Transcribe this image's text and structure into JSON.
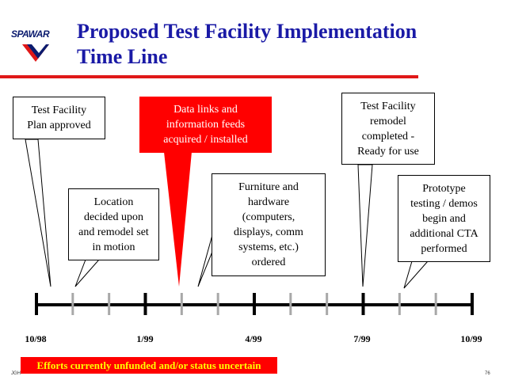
{
  "slide": {
    "logo_text": "SPAWAR",
    "title_line1": "Proposed Test Facility Implementation",
    "title_line2": "Time Line",
    "footer_note": "Efforts currently unfunded and/or status uncertain",
    "author_initials": "JGH",
    "page_number": "76"
  },
  "callouts": {
    "plan_approved": [
      "Test Facility",
      "Plan approved"
    ],
    "location_decided": [
      "Location",
      "decided upon",
      "and remodel set",
      "in motion"
    ],
    "data_links": [
      "Data links and",
      "information feeds",
      "acquired / installed"
    ],
    "furniture": [
      "Furniture and",
      "hardware",
      "(computers,",
      "displays, comm",
      "systems, etc.)",
      "ordered"
    ],
    "remodel_completed": [
      "Test Facility",
      "remodel",
      "completed -",
      "Ready for use"
    ],
    "prototype_testing": [
      "Prototype",
      "testing / demos",
      "begin and",
      "additional CTA",
      "performed"
    ]
  },
  "timeline": {
    "tick_labels": [
      "10/98",
      "1/99",
      "4/99",
      "7/99",
      "10/99"
    ]
  },
  "colors": {
    "title": "#1a1aa6",
    "accent_red": "#ff0000",
    "note_text": "#ffff00"
  }
}
